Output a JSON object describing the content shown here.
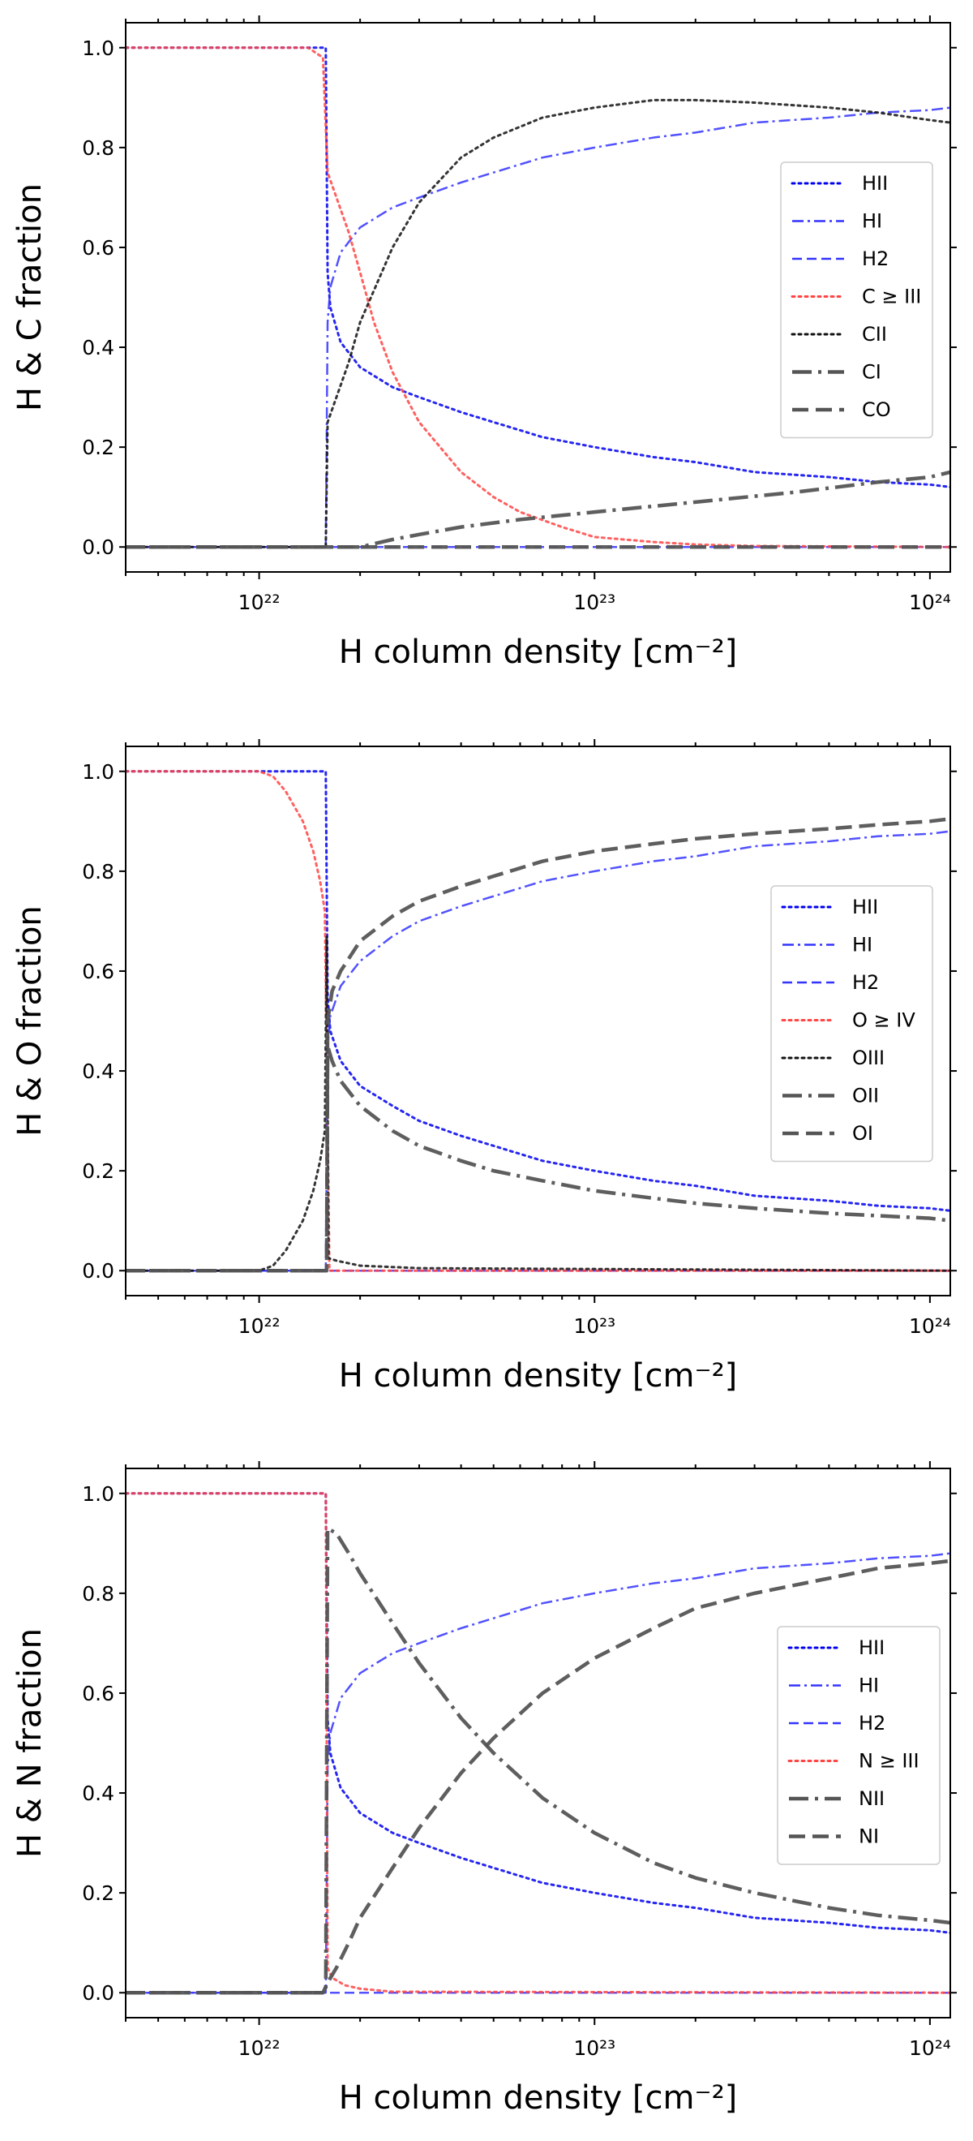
{
  "chart_data": [
    {
      "type": "line",
      "title": "",
      "xlabel": "H column density [cm⁻²]",
      "ylabel": "H & C fraction",
      "xscale": "log",
      "xlim": [
        4e+21,
        1.15e+24
      ],
      "ylim": [
        -0.05,
        1.05
      ],
      "yticks": [
        "0.0",
        "0.2",
        "0.4",
        "0.6",
        "0.8",
        "1.0"
      ],
      "xticks": [
        "10²²",
        "10²³",
        "10²⁴"
      ],
      "legend_position": "center-right",
      "series": [
        {
          "name": "HII",
          "color": "#0000ee",
          "dash": "dotted",
          "x": [
            4e+21,
            1.5e+22,
            1.58e+22,
            1.6e+22,
            1.63e+22,
            1.75e+22,
            2e+22,
            2.5e+22,
            3e+22,
            4e+22,
            5e+22,
            7e+22,
            1e+23,
            1.5e+23,
            2e+23,
            3e+23,
            5e+23,
            7e+23,
            1e+24,
            1.15e+24
          ],
          "y": [
            1,
            1,
            1,
            0.55,
            0.48,
            0.41,
            0.36,
            0.32,
            0.3,
            0.27,
            0.25,
            0.22,
            0.2,
            0.18,
            0.17,
            0.15,
            0.14,
            0.13,
            0.125,
            0.12
          ]
        },
        {
          "name": "HI",
          "color": "#3333ff",
          "dash": "dashdot",
          "x": [
            4e+21,
            1.5e+22,
            1.58e+22,
            1.6e+22,
            1.63e+22,
            1.75e+22,
            2e+22,
            2.5e+22,
            3e+22,
            4e+22,
            5e+22,
            7e+22,
            1e+23,
            1.5e+23,
            2e+23,
            3e+23,
            5e+23,
            7e+23,
            1e+24,
            1.15e+24
          ],
          "y": [
            0,
            0,
            0,
            0.45,
            0.52,
            0.59,
            0.64,
            0.68,
            0.7,
            0.73,
            0.75,
            0.78,
            0.8,
            0.82,
            0.83,
            0.85,
            0.86,
            0.87,
            0.875,
            0.88
          ]
        },
        {
          "name": "H2",
          "color": "#3333ff",
          "dash": "dashed",
          "x": [
            4e+21,
            1.15e+24
          ],
          "y": [
            0,
            0
          ]
        },
        {
          "name": "C ≥ III",
          "color": "#ff4444",
          "dash": "dotted",
          "x": [
            4e+21,
            1.4e+22,
            1.55e+22,
            1.6e+22,
            1.7e+22,
            1.85e+22,
            2e+22,
            2.2e+22,
            2.5e+22,
            3e+22,
            4e+22,
            5e+22,
            6e+22,
            8e+22,
            1e+23,
            1.5e+23,
            2e+23,
            3e+23,
            1.15e+24
          ],
          "y": [
            1,
            1,
            0.98,
            0.75,
            0.7,
            0.63,
            0.55,
            0.45,
            0.35,
            0.25,
            0.15,
            0.1,
            0.07,
            0.04,
            0.02,
            0.01,
            0.005,
            0.002,
            0
          ]
        },
        {
          "name": "CII",
          "color": "#111111",
          "dash": "dotted",
          "x": [
            4e+21,
            1.5e+22,
            1.58e+22,
            1.6e+22,
            1.7e+22,
            1.85e+22,
            2e+22,
            2.5e+22,
            3e+22,
            4e+22,
            5e+22,
            7e+22,
            1e+23,
            1.5e+23,
            2e+23,
            3e+23,
            5e+23,
            7e+23,
            1e+24,
            1.15e+24
          ],
          "y": [
            0,
            0,
            0,
            0.25,
            0.3,
            0.37,
            0.45,
            0.6,
            0.69,
            0.78,
            0.82,
            0.86,
            0.88,
            0.895,
            0.895,
            0.89,
            0.88,
            0.87,
            0.855,
            0.85
          ]
        },
        {
          "name": "CI",
          "color": "#555555",
          "dash": "bigdashdot",
          "x": [
            4e+21,
            2e+22,
            2.5e+22,
            3e+22,
            4e+22,
            6e+22,
            1e+23,
            2e+23,
            4e+23,
            7e+23,
            1e+24,
            1.15e+24
          ],
          "y": [
            0,
            0,
            0.015,
            0.025,
            0.04,
            0.055,
            0.07,
            0.09,
            0.11,
            0.13,
            0.14,
            0.15
          ]
        },
        {
          "name": "CO",
          "color": "#555555",
          "dash": "bigdashed",
          "x": [
            4e+21,
            1.15e+24
          ],
          "y": [
            0,
            0
          ]
        }
      ]
    },
    {
      "type": "line",
      "title": "",
      "xlabel": "H column density [cm⁻²]",
      "ylabel": "H & O fraction",
      "xscale": "log",
      "xlim": [
        4e+21,
        1.15e+24
      ],
      "ylim": [
        -0.05,
        1.05
      ],
      "yticks": [
        "0.0",
        "0.2",
        "0.4",
        "0.6",
        "0.8",
        "1.0"
      ],
      "xticks": [
        "10²²",
        "10²³",
        "10²⁴"
      ],
      "legend_position": "center-right",
      "series": [
        {
          "name": "HII",
          "color": "#0000ee",
          "dash": "dotted",
          "x": [
            4e+21,
            1.5e+22,
            1.58e+22,
            1.6e+22,
            1.63e+22,
            1.75e+22,
            2e+22,
            2.5e+22,
            3e+22,
            4e+22,
            5e+22,
            7e+22,
            1e+23,
            1.5e+23,
            2e+23,
            3e+23,
            5e+23,
            7e+23,
            1e+24,
            1.15e+24
          ],
          "y": [
            1,
            1,
            1,
            0.55,
            0.48,
            0.42,
            0.37,
            0.33,
            0.3,
            0.27,
            0.25,
            0.22,
            0.2,
            0.18,
            0.17,
            0.15,
            0.14,
            0.13,
            0.125,
            0.12
          ]
        },
        {
          "name": "HI",
          "color": "#3333ff",
          "dash": "dashdot",
          "x": [
            4e+21,
            1.5e+22,
            1.58e+22,
            1.6e+22,
            1.63e+22,
            1.75e+22,
            2e+22,
            2.5e+22,
            3e+22,
            4e+22,
            5e+22,
            7e+22,
            1e+23,
            1.5e+23,
            2e+23,
            3e+23,
            5e+23,
            7e+23,
            1e+24,
            1.15e+24
          ],
          "y": [
            0,
            0,
            0,
            0.45,
            0.51,
            0.57,
            0.62,
            0.67,
            0.7,
            0.73,
            0.75,
            0.78,
            0.8,
            0.82,
            0.83,
            0.85,
            0.86,
            0.87,
            0.875,
            0.88
          ]
        },
        {
          "name": "H2",
          "color": "#3333ff",
          "dash": "dashed",
          "x": [
            4e+21,
            1.15e+24
          ],
          "y": [
            0,
            0
          ]
        },
        {
          "name": "O ≥ IV",
          "color": "#ff4444",
          "dash": "dotted",
          "x": [
            4e+21,
            1e+22,
            1.1e+22,
            1.2e+22,
            1.35e+22,
            1.45e+22,
            1.52e+22,
            1.57e+22,
            1.6e+22,
            1.62e+22,
            1.15e+24
          ],
          "y": [
            1,
            1,
            0.99,
            0.96,
            0.9,
            0.84,
            0.78,
            0.72,
            0.3,
            0,
            0
          ]
        },
        {
          "name": "OIII",
          "color": "#111111",
          "dash": "dotted",
          "x": [
            4e+21,
            1e+22,
            1.1e+22,
            1.2e+22,
            1.35e+22,
            1.45e+22,
            1.52e+22,
            1.57e+22,
            1.59e+22,
            1.61e+22,
            1.7e+22,
            2e+22,
            3e+22,
            1.15e+24
          ],
          "y": [
            0,
            0,
            0.01,
            0.04,
            0.1,
            0.16,
            0.22,
            0.28,
            0.67,
            0.025,
            0.02,
            0.01,
            0.005,
            0
          ]
        },
        {
          "name": "OII",
          "color": "#555555",
          "dash": "bigdashdot",
          "x": [
            4e+21,
            1.5e+22,
            1.59e+22,
            1.6e+22,
            1.65e+22,
            1.75e+22,
            2e+22,
            2.5e+22,
            3e+22,
            4e+22,
            5e+22,
            7e+22,
            1e+23,
            1.5e+23,
            2e+23,
            3e+23,
            5e+23,
            7e+23,
            1e+24,
            1.15e+24
          ],
          "y": [
            0,
            0,
            0,
            0.45,
            0.42,
            0.38,
            0.33,
            0.28,
            0.25,
            0.22,
            0.2,
            0.18,
            0.16,
            0.145,
            0.135,
            0.125,
            0.115,
            0.11,
            0.105,
            0.1
          ]
        },
        {
          "name": "OI",
          "color": "#555555",
          "dash": "bigdashed",
          "x": [
            4e+21,
            1.5e+22,
            1.59e+22,
            1.6e+22,
            1.65e+22,
            1.75e+22,
            2e+22,
            2.5e+22,
            3e+22,
            4e+22,
            5e+22,
            7e+22,
            1e+23,
            1.5e+23,
            2e+23,
            3e+23,
            5e+23,
            7e+23,
            1e+24,
            1.15e+24
          ],
          "y": [
            0,
            0,
            0,
            0.5,
            0.56,
            0.6,
            0.66,
            0.71,
            0.74,
            0.77,
            0.79,
            0.82,
            0.84,
            0.855,
            0.865,
            0.875,
            0.885,
            0.893,
            0.9,
            0.905
          ]
        }
      ]
    },
    {
      "type": "line",
      "title": "",
      "xlabel": "H column density [cm⁻²]",
      "ylabel": "H & N fraction",
      "xscale": "log",
      "xlim": [
        4e+21,
        1.15e+24
      ],
      "ylim": [
        -0.05,
        1.05
      ],
      "yticks": [
        "0.0",
        "0.2",
        "0.4",
        "0.6",
        "0.8",
        "1.0"
      ],
      "xticks": [
        "10²²",
        "10²³",
        "10²⁴"
      ],
      "legend_position": "center-right",
      "series": [
        {
          "name": "HII",
          "color": "#0000ee",
          "dash": "dotted",
          "x": [
            4e+21,
            1.5e+22,
            1.58e+22,
            1.6e+22,
            1.63e+22,
            1.75e+22,
            2e+22,
            2.5e+22,
            3e+22,
            4e+22,
            5e+22,
            7e+22,
            1e+23,
            1.5e+23,
            2e+23,
            3e+23,
            5e+23,
            7e+23,
            1e+24,
            1.15e+24
          ],
          "y": [
            1,
            1,
            1,
            0.55,
            0.48,
            0.41,
            0.36,
            0.32,
            0.3,
            0.27,
            0.25,
            0.22,
            0.2,
            0.18,
            0.17,
            0.15,
            0.14,
            0.13,
            0.125,
            0.12
          ]
        },
        {
          "name": "HI",
          "color": "#3333ff",
          "dash": "dashdot",
          "x": [
            4e+21,
            1.5e+22,
            1.58e+22,
            1.6e+22,
            1.63e+22,
            1.75e+22,
            2e+22,
            2.5e+22,
            3e+22,
            4e+22,
            5e+22,
            7e+22,
            1e+23,
            1.5e+23,
            2e+23,
            3e+23,
            5e+23,
            7e+23,
            1e+24,
            1.15e+24
          ],
          "y": [
            0,
            0,
            0,
            0.45,
            0.52,
            0.59,
            0.64,
            0.68,
            0.7,
            0.73,
            0.75,
            0.78,
            0.8,
            0.82,
            0.83,
            0.85,
            0.86,
            0.87,
            0.875,
            0.88
          ]
        },
        {
          "name": "H2",
          "color": "#3333ff",
          "dash": "dashed",
          "x": [
            4e+21,
            1.15e+24
          ],
          "y": [
            0,
            0
          ]
        },
        {
          "name": "N ≥ III",
          "color": "#ff4444",
          "dash": "dotted",
          "x": [
            4e+21,
            1.5e+22,
            1.58e+22,
            1.6e+22,
            1.65e+22,
            1.8e+22,
            2e+22,
            2.5e+22,
            1.15e+24
          ],
          "y": [
            1,
            1,
            1,
            0.05,
            0.03,
            0.015,
            0.008,
            0.002,
            0
          ]
        },
        {
          "name": "NII",
          "color": "#555555",
          "dash": "bigdashdot",
          "x": [
            4e+21,
            1.5e+22,
            1.58e+22,
            1.6e+22,
            1.7e+22,
            1.85e+22,
            2e+22,
            2.5e+22,
            3e+22,
            4e+22,
            5e+22,
            7e+22,
            1e+23,
            1.5e+23,
            2e+23,
            3e+23,
            5e+23,
            7e+23,
            1e+24,
            1.15e+24
          ],
          "y": [
            0,
            0,
            0,
            0.93,
            0.92,
            0.88,
            0.84,
            0.74,
            0.66,
            0.55,
            0.48,
            0.39,
            0.32,
            0.26,
            0.23,
            0.2,
            0.17,
            0.155,
            0.145,
            0.14
          ]
        },
        {
          "name": "NI",
          "color": "#555555",
          "dash": "bigdashed",
          "x": [
            4e+21,
            1.55e+22,
            1.6e+22,
            1.7e+22,
            1.85e+22,
            2e+22,
            2.5e+22,
            3e+22,
            4e+22,
            5e+22,
            7e+22,
            1e+23,
            1.5e+23,
            2e+23,
            3e+23,
            5e+23,
            7e+23,
            1e+24,
            1.15e+24
          ],
          "y": [
            0,
            0,
            0.02,
            0.05,
            0.1,
            0.15,
            0.25,
            0.33,
            0.44,
            0.51,
            0.6,
            0.67,
            0.73,
            0.77,
            0.8,
            0.83,
            0.85,
            0.86,
            0.865
          ]
        }
      ]
    }
  ]
}
